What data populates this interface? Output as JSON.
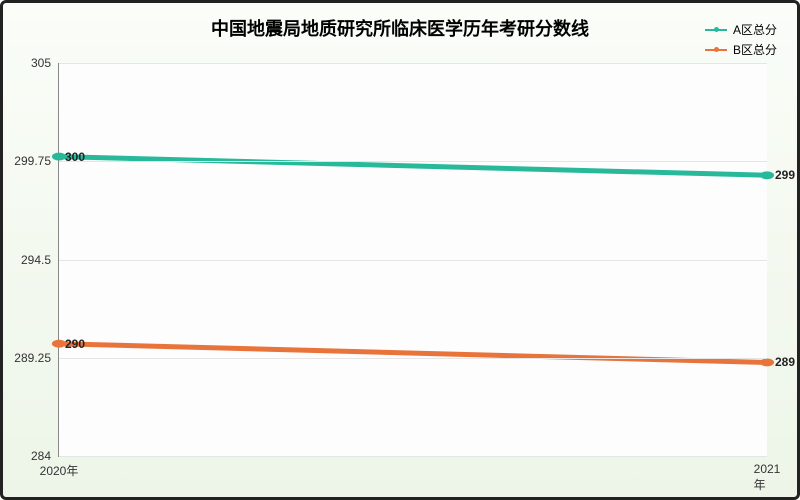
{
  "chart": {
    "type": "line",
    "title": "中国地震局地质研究所临床医学历年考研分数线",
    "title_fontsize": 18,
    "title_fontweight": "bold",
    "background_gradient": [
      "#fafdf8",
      "#edf5e8"
    ],
    "plot_background": "#fdfdfd",
    "border_color": "#222222",
    "grid_color": "#e5e5e5",
    "x": {
      "categories": [
        "2020年",
        "2021年"
      ],
      "label_fontsize": 12
    },
    "y": {
      "ylim": [
        284,
        305
      ],
      "ticks": [
        284,
        289.25,
        294.5,
        299.75,
        305
      ],
      "label_fontsize": 12
    },
    "series": [
      {
        "name": "A区总分",
        "color": "#28b99a",
        "line_width": 2,
        "values": [
          300,
          299
        ],
        "labels": [
          "300",
          "299"
        ]
      },
      {
        "name": "B区总分",
        "color": "#e8743b",
        "line_width": 2,
        "values": [
          290,
          289
        ],
        "labels": [
          "290",
          "289"
        ]
      }
    ],
    "legend": {
      "position": "top-right",
      "fontsize": 12
    },
    "data_label_fontsize": 12
  }
}
